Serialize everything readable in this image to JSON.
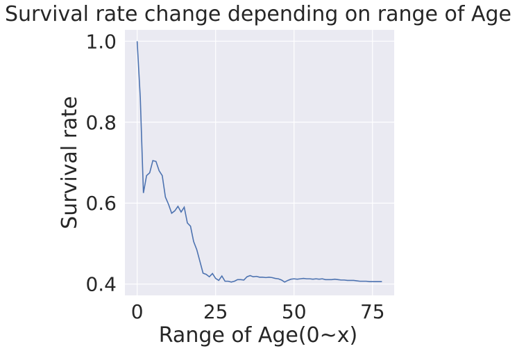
{
  "chart_data": {
    "type": "line",
    "title": "Survival rate change depending on range of Age",
    "xlabel": "Range of Age(0~x)",
    "ylabel": "Survival rate",
    "xlim": [
      -3.9,
      81.9
    ],
    "ylim": [
      0.372,
      1.028
    ],
    "xticks": [
      0,
      25,
      50,
      75
    ],
    "yticks": [
      0.4,
      0.6,
      0.8,
      1.0
    ],
    "xtick_labels": [
      "0",
      "25",
      "50",
      "75"
    ],
    "ytick_labels": [
      "0.4",
      "0.6",
      "0.8",
      "1.0"
    ],
    "grid": true,
    "background": "#eaeaf2",
    "grid_color": "#ffffff",
    "line_color": "#4c72b0",
    "series": [
      {
        "x": [
          0,
          1,
          2,
          3,
          4,
          5,
          6,
          7,
          8,
          9,
          10,
          11,
          12,
          13,
          14,
          15,
          16,
          17,
          18,
          19,
          20,
          21,
          22,
          23,
          24,
          25,
          26,
          27,
          28,
          29,
          30,
          31,
          32,
          33,
          34,
          35,
          36,
          37,
          38,
          39,
          40,
          41,
          42,
          43,
          44,
          45,
          46,
          47,
          48,
          49,
          50,
          51,
          52,
          53,
          54,
          55,
          56,
          57,
          58,
          59,
          60,
          61,
          62,
          63,
          64,
          65,
          66,
          67,
          68,
          69,
          70,
          71,
          72,
          73,
          74,
          75,
          76,
          77,
          78
        ],
        "y": [
          1.0,
          0.86,
          0.625,
          0.668,
          0.675,
          0.705,
          0.703,
          0.68,
          0.668,
          0.615,
          0.597,
          0.575,
          0.581,
          0.592,
          0.578,
          0.59,
          0.551,
          0.543,
          0.505,
          0.485,
          0.456,
          0.427,
          0.424,
          0.418,
          0.426,
          0.414,
          0.409,
          0.42,
          0.407,
          0.407,
          0.405,
          0.407,
          0.411,
          0.411,
          0.41,
          0.418,
          0.421,
          0.418,
          0.419,
          0.417,
          0.417,
          0.416,
          0.417,
          0.416,
          0.414,
          0.413,
          0.41,
          0.405,
          0.409,
          0.412,
          0.413,
          0.412,
          0.413,
          0.414,
          0.413,
          0.413,
          0.412,
          0.413,
          0.412,
          0.413,
          0.411,
          0.411,
          0.411,
          0.412,
          0.411,
          0.41,
          0.41,
          0.409,
          0.409,
          0.409,
          0.408,
          0.407,
          0.407,
          0.407,
          0.406,
          0.406,
          0.406,
          0.406,
          0.406
        ]
      }
    ]
  }
}
